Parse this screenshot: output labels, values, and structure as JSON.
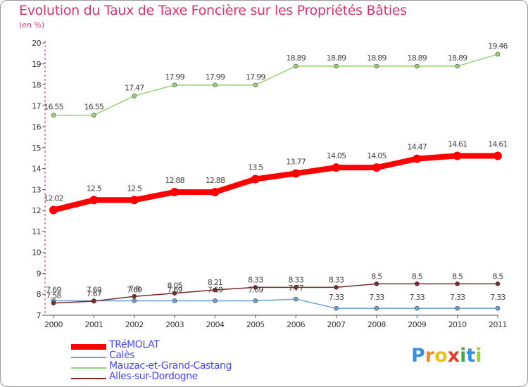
{
  "title": "Evolution du Taux de Taxe Foncière sur les Propriétés Bâties",
  "unit": "(en %)",
  "brand": {
    "letters": [
      "P",
      "r",
      "o",
      "x",
      "i",
      "t",
      "i"
    ],
    "colors": [
      "#3a8fd8",
      "#f08a2a",
      "#e8c21e",
      "#d8402a",
      "#4aa84a",
      "#3a8fd8",
      "#9ad03a"
    ]
  },
  "chart_data": {
    "type": "line",
    "title": "Evolution du Taux de Taxe Foncière sur les Propriétés Bâties",
    "ylabel": "(en %)",
    "xlabel": "",
    "ylim": [
      7,
      20
    ],
    "yticks": [
      7,
      8,
      9,
      10,
      11,
      12,
      13,
      14,
      15,
      16,
      17,
      18,
      19,
      20
    ],
    "categories": [
      "2000",
      "2001",
      "2002",
      "2003",
      "2004",
      "2005",
      "2006",
      "2007",
      "2008",
      "2009",
      "2010",
      "2011"
    ],
    "series": [
      {
        "name": "TRéMOLAT",
        "color": "#ff0000",
        "values": [
          12.02,
          12.5,
          12.5,
          12.88,
          12.88,
          13.5,
          13.77,
          14.05,
          14.05,
          14.47,
          14.61,
          14.61
        ],
        "labels": [
          "12.02",
          "12.5",
          "12.5",
          "12.88",
          "12.88",
          "13.5",
          "13.77",
          "14.05",
          "14.05",
          "14.47",
          "14.61",
          "14.61"
        ]
      },
      {
        "name": "Calès",
        "color": "#6a9fd0",
        "values": [
          7.69,
          7.69,
          7.69,
          7.69,
          7.69,
          7.69,
          7.77,
          7.33,
          7.33,
          7.33,
          7.33,
          7.33
        ],
        "labels": [
          "7.69",
          "7.69",
          "7.69",
          "7.69",
          "7.69",
          "7.69",
          "7.77",
          "7.33",
          "7.33",
          "7.33",
          "7.33",
          "7.33"
        ]
      },
      {
        "name": "Mauzac-et-Grand-Castang",
        "color": "#9ad07a",
        "values": [
          16.55,
          16.55,
          17.47,
          17.99,
          17.99,
          17.99,
          18.89,
          18.89,
          18.89,
          18.89,
          18.89,
          19.46
        ],
        "labels": [
          "16.55",
          "16.55",
          "17.47",
          "17.99",
          "17.99",
          "17.99",
          "18.89",
          "18.89",
          "18.89",
          "18.89",
          "18.89",
          "19.46"
        ]
      },
      {
        "name": "Alles-sur-Dordogne",
        "color": "#7a2a2a",
        "values": [
          7.58,
          7.67,
          7.9,
          8.05,
          8.21,
          8.33,
          8.33,
          8.33,
          8.5,
          8.5,
          8.5,
          8.5
        ],
        "labels": [
          "7.58",
          "7.67",
          "7.9",
          "8.05",
          "8.21",
          "8.33",
          "8.33",
          "8.33",
          "8.5",
          "8.5",
          "8.5",
          "8.5"
        ]
      }
    ],
    "legend_position": "bottom-left",
    "grid": false
  }
}
